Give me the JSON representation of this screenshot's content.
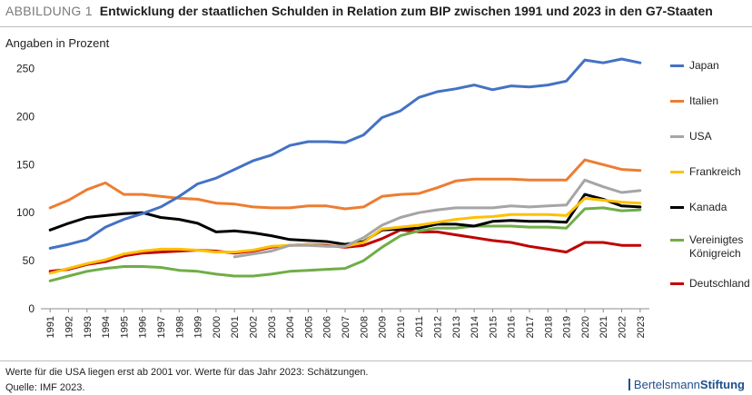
{
  "header": {
    "label": "ABBILDUNG 1",
    "title": "Entwicklung der staatlichen Schulden in Relation zum BIP zwischen 1991 und 2023 in den G7-Staaten"
  },
  "subtitle": "Angaben in Prozent",
  "footnotes": {
    "note": "Werte für die USA liegen erst ab 2001 vor. Werte für das Jahr 2023: Schätzungen.",
    "source": "Quelle: IMF 2023."
  },
  "brand": {
    "part1": "Bertelsmann",
    "part2": "Stiftung"
  },
  "chart_data": {
    "type": "line",
    "title": "Entwicklung der staatlichen Schulden in Relation zum BIP zwischen 1991 und 2023 in den G7-Staaten",
    "ylabel": "Angaben in Prozent",
    "xlabel": "",
    "ylim": [
      0,
      260
    ],
    "yticks": [
      0,
      50,
      100,
      150,
      200,
      250
    ],
    "grid": "none",
    "legend_position": "right",
    "x": [
      "1991",
      "1992",
      "1993",
      "1994",
      "1995",
      "1996",
      "1997",
      "1998",
      "1999",
      "2000",
      "2001",
      "2002",
      "2003",
      "2004",
      "2005",
      "2006",
      "2007",
      "2008",
      "2009",
      "2010",
      "2011",
      "2012",
      "2013",
      "2014",
      "2015",
      "2016",
      "2017",
      "2018",
      "2019",
      "2020",
      "2021",
      "2022",
      "2023"
    ],
    "series": [
      {
        "name": "Japan",
        "color": "#4472c4",
        "values": [
          63,
          67,
          72,
          85,
          93,
          99,
          106,
          117,
          130,
          136,
          145,
          154,
          160,
          170,
          174,
          174,
          173,
          181,
          199,
          206,
          220,
          226,
          229,
          233,
          228,
          232,
          231,
          233,
          237,
          259,
          256,
          260,
          256
        ]
      },
      {
        "name": "Italien",
        "color": "#ed7d31",
        "values": [
          105,
          113,
          124,
          131,
          119,
          119,
          117,
          115,
          114,
          110,
          109,
          106,
          105,
          105,
          107,
          107,
          104,
          106,
          117,
          119,
          120,
          126,
          133,
          135,
          135,
          135,
          134,
          134,
          134,
          155,
          150,
          145,
          144
        ]
      },
      {
        "name": "USA",
        "color": "#a5a5a5",
        "values": [
          null,
          null,
          null,
          null,
          null,
          null,
          null,
          null,
          null,
          null,
          54,
          57,
          60,
          66,
          66,
          65,
          65,
          74,
          87,
          95,
          100,
          103,
          105,
          105,
          105,
          107,
          106,
          107,
          108,
          134,
          127,
          121,
          123
        ]
      },
      {
        "name": "Frankreich",
        "color": "#ffc000",
        "values": [
          37,
          42,
          47,
          51,
          57,
          60,
          62,
          62,
          61,
          59,
          59,
          61,
          65,
          66,
          67,
          65,
          65,
          69,
          83,
          85,
          87,
          90,
          93,
          95,
          96,
          98,
          98,
          98,
          97,
          115,
          113,
          111,
          110
        ]
      },
      {
        "name": "Kanada",
        "color": "#000000",
        "values": [
          82,
          89,
          95,
          97,
          99,
          100,
          95,
          93,
          89,
          80,
          81,
          79,
          76,
          72,
          71,
          70,
          67,
          70,
          82,
          83,
          84,
          88,
          88,
          86,
          91,
          92,
          91,
          91,
          90,
          119,
          114,
          107,
          106
        ]
      },
      {
        "name": "Vereinigtes Königreich",
        "color": "#70ad47",
        "values": [
          29,
          34,
          39,
          42,
          44,
          44,
          43,
          40,
          39,
          36,
          34,
          34,
          36,
          39,
          40,
          41,
          42,
          50,
          64,
          76,
          81,
          84,
          84,
          86,
          86,
          86,
          85,
          85,
          84,
          104,
          105,
          102,
          103
        ]
      },
      {
        "name": "Deutschland",
        "color": "#c00000",
        "values": [
          39,
          41,
          46,
          49,
          55,
          58,
          59,
          60,
          61,
          60,
          58,
          60,
          64,
          66,
          67,
          66,
          64,
          66,
          73,
          82,
          80,
          80,
          77,
          74,
          71,
          69,
          65,
          62,
          59,
          69,
          69,
          66,
          66
        ]
      }
    ]
  }
}
